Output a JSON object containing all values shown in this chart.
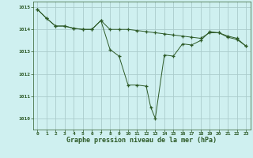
{
  "line1_x": [
    0,
    1,
    2,
    3,
    4,
    5,
    6,
    7,
    8,
    9,
    10,
    11,
    12,
    13,
    14,
    15,
    16,
    17,
    18,
    19,
    20,
    21,
    22,
    23
  ],
  "line1_y": [
    1014.9,
    1014.5,
    1014.15,
    1014.15,
    1014.05,
    1014.0,
    1014.0,
    1014.4,
    1014.0,
    1014.0,
    1014.0,
    1013.95,
    1013.9,
    1013.85,
    1013.8,
    1013.75,
    1013.7,
    1013.65,
    1013.6,
    1013.85,
    1013.85,
    1013.7,
    1013.6,
    1013.25
  ],
  "line2_x": [
    0,
    1,
    2,
    3,
    4,
    5,
    6,
    7,
    8,
    9,
    10,
    11,
    12,
    12.5,
    13,
    14,
    15,
    16,
    17,
    18,
    19,
    20,
    21,
    22,
    23
  ],
  "line2_y": [
    1014.9,
    1014.5,
    1014.15,
    1014.15,
    1014.05,
    1014.0,
    1014.0,
    1014.4,
    1013.1,
    1012.8,
    1011.5,
    1011.5,
    1011.45,
    1010.5,
    1010.0,
    1012.85,
    1012.8,
    1013.35,
    1013.3,
    1013.5,
    1013.9,
    1013.85,
    1013.65,
    1013.55,
    1013.25
  ],
  "bg_color": "#cff0f0",
  "grid_color": "#aacccc",
  "line_color": "#2d5a27",
  "marker": "+",
  "xlabel": "Graphe pression niveau de la mer (hPa)",
  "ylim": [
    1009.5,
    1015.25
  ],
  "xlim": [
    -0.5,
    23.5
  ],
  "yticks": [
    1010,
    1011,
    1012,
    1013,
    1014,
    1015
  ],
  "xticks": [
    0,
    1,
    2,
    3,
    4,
    5,
    6,
    7,
    8,
    9,
    10,
    11,
    12,
    13,
    14,
    15,
    16,
    17,
    18,
    19,
    20,
    21,
    22,
    23
  ],
  "tick_fontsize": 4.5,
  "label_fontsize": 6.0
}
